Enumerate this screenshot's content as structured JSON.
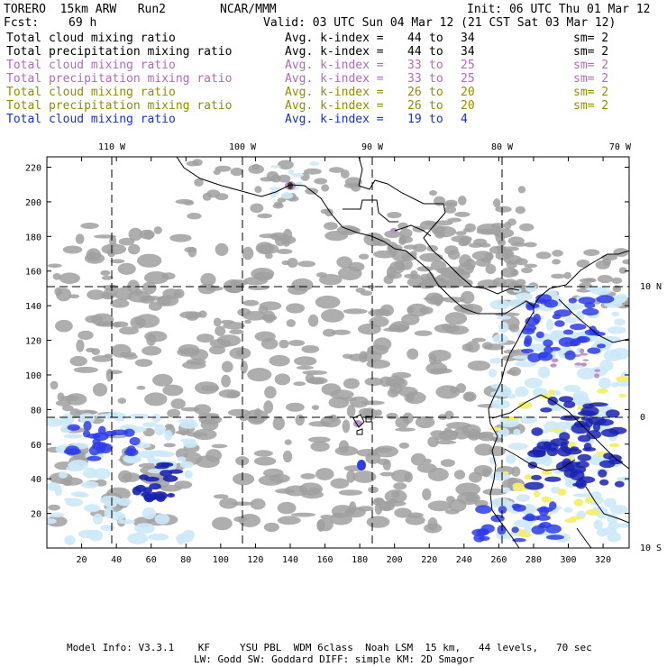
{
  "header": {
    "model": "TORERO  15km ARW   Run2",
    "org": "NCAR/MMM",
    "init": "Init: 06 UTC Thu 01 Mar 12",
    "fcst_label": "Fcst:",
    "fcst_value": "69 h",
    "valid": "Valid: 03 UTC Sun 04 Mar 12 (21 CST Sat 03 Mar 12)"
  },
  "legend": [
    {
      "field": "Total cloud mixing ratio",
      "avg": "Avg. k-index = ",
      "from": "44",
      "to": "to",
      "until": "34",
      "sm": "sm= 2",
      "color": "#000000"
    },
    {
      "field": "Total precipitation mixing ratio",
      "avg": "Avg. k-index = ",
      "from": "44",
      "to": "to",
      "until": "34",
      "sm": "sm= 2",
      "color": "#000000"
    },
    {
      "field": "Total cloud mixing ratio",
      "avg": "Avg. k-index = ",
      "from": "33",
      "to": "to",
      "until": "25",
      "sm": "sm= 2",
      "color": "#b26bb4"
    },
    {
      "field": "Total precipitation mixing ratio",
      "avg": "Avg. k-index = ",
      "from": "33",
      "to": "to",
      "until": "25",
      "sm": "sm= 2",
      "color": "#b26bb4"
    },
    {
      "field": "Total cloud mixing ratio",
      "avg": "Avg. k-index = ",
      "from": "26",
      "to": "to",
      "until": "20",
      "sm": "sm= 2",
      "color": "#8f8d00"
    },
    {
      "field": "Total precipitation mixing ratio",
      "avg": "Avg. k-index = ",
      "from": "26",
      "to": "to",
      "until": "20",
      "sm": "sm= 2",
      "color": "#8f8d00"
    },
    {
      "field": "Total cloud mixing ratio",
      "avg": "Avg. k-index = ",
      "from": "19",
      "to": "to",
      "until": "4",
      "sm": "",
      "color": "#1830d0"
    }
  ],
  "map": {
    "top_lon_labels": [
      "110 W",
      "100 W",
      "90 W",
      "80 W",
      "70 W"
    ],
    "right_lat_labels": [
      "10 N",
      "0",
      "10 S"
    ],
    "y_ticks": [
      "20",
      "40",
      "60",
      "80",
      "100",
      "120",
      "140",
      "160",
      "180",
      "200",
      "220"
    ],
    "x_ticks": [
      "20",
      "40",
      "60",
      "80",
      "100",
      "120",
      "140",
      "160",
      "180",
      "200",
      "220",
      "240",
      "260",
      "280",
      "300",
      "320"
    ],
    "colors": {
      "cloud_gray": "#a0a0a0",
      "cloud_lightblue": "#cce9f8",
      "cloud_blue": "#2d3ce8",
      "cloud_darkblue": "#1a22b0",
      "precip_purple": "#b98fc4",
      "yellow": "#f3ef6a",
      "coastline": "#000000"
    }
  },
  "footer": {
    "line1": "Model Info: V3.3.1    KF     YSU PBL  WDM 6class  Noah LSM  15 km,   44 levels,   70 sec",
    "line2": "LW: Godd SW: Goddard DIFF: simple KM: 2D Smagor"
  }
}
